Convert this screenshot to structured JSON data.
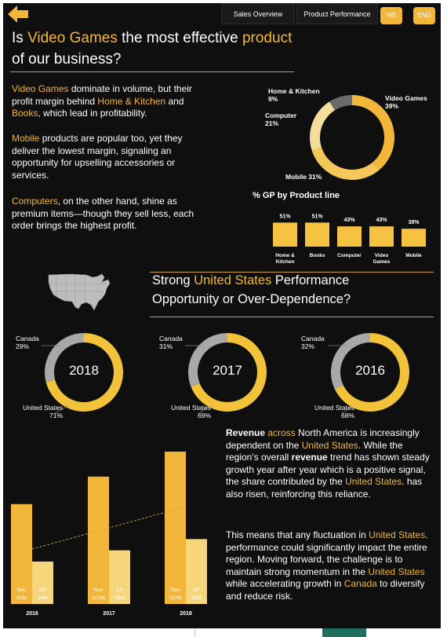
{
  "nav": {
    "tabs": [
      "Sales Overview",
      "Product Performance"
    ],
    "languages": [
      "VIE",
      "ENG"
    ]
  },
  "section1": {
    "title_parts": [
      "Is ",
      "Video Games",
      " the most effective ",
      "product",
      "\nof our business?"
    ],
    "para1_parts": [
      "Video Games",
      " dominate in volume, but their profit margin behind ",
      "Home & Kitchen",
      " and ",
      "Books",
      ", which lead in profitability."
    ],
    "para2_parts": [
      "Mobile",
      " products are popular too, yet they deliver the lowest margin, signaling an opportunity for upselling accessories or services."
    ],
    "para3_parts": [
      "Computers",
      ", on the other hand, shine as premium items—though they sell less, each order brings the highest profit."
    ]
  },
  "section2": {
    "title_parts": [
      "Strong ",
      "United States",
      " Performance\nOpportunity or Over-Dependence?"
    ]
  },
  "section3": {
    "para1_parts": [
      "Revenue",
      " across ",
      "North America",
      " is increasingly dependent on the ",
      "United States",
      ". While the region's overall ",
      "revenue",
      " trend has shown steady growth year after year which is a positive signal, the share contributed by the ",
      "United States",
      ". has also risen, reinforcing this reliance."
    ],
    "para2_parts": [
      "This means that any fluctuation in ",
      "United States",
      ". performance could significantly impact the entire region. Moving forward, the challenge is to maintain strong momentum in the ",
      "United States",
      " while accelerating growth in ",
      "Canada",
      " to diversify and reduce risk."
    ]
  },
  "chart_data": [
    {
      "type": "pie",
      "title": "",
      "categories": [
        "Video Games",
        "Mobile",
        "Computer",
        "Home & Kitchen"
      ],
      "values": [
        39,
        31,
        21,
        9
      ],
      "labels": [
        "Video Games\n39%",
        "Mobile 31%",
        "Computer\n21%",
        "Home & Kitchen\n9%"
      ],
      "colors": [
        "#f2b63b",
        "#f5c85a",
        "#f7dd9a",
        "#6b6b6b"
      ]
    },
    {
      "type": "bar",
      "title": "% GP by Product line",
      "categories": [
        "Home & Kitchen",
        "Books",
        "Computer",
        "Video Games",
        "Mobile"
      ],
      "tick_labels": [
        "Home &\nKitchen",
        "Books",
        "Computer",
        "Video\nGames",
        "Mobile"
      ],
      "values": [
        51,
        51,
        43,
        43,
        38
      ],
      "value_labels": [
        "51%",
        "51%",
        "43%",
        "43%",
        "38%"
      ],
      "color": "#f5c242"
    },
    {
      "type": "pie",
      "title": "2018",
      "categories": [
        "United States",
        "Canada"
      ],
      "values": [
        71,
        29
      ],
      "labels": [
        "United States\n71%",
        "Canada\n29%"
      ],
      "colors": [
        "#f2c23b",
        "#a8a8a8"
      ]
    },
    {
      "type": "pie",
      "title": "2017",
      "categories": [
        "United States",
        "Canada"
      ],
      "values": [
        69,
        31
      ],
      "labels": [
        "United States\n69%",
        "Canada\n31%"
      ],
      "colors": [
        "#f2c23b",
        "#a8a8a8"
      ]
    },
    {
      "type": "pie",
      "title": "2016",
      "categories": [
        "United States",
        "Canada"
      ],
      "values": [
        68,
        32
      ],
      "labels": [
        "United States\n68%",
        "Canada\n32%"
      ],
      "colors": [
        "#f2c23b",
        "#a8a8a8"
      ]
    },
    {
      "type": "bar",
      "categories": [
        "2016",
        "2017",
        "2018"
      ],
      "series": [
        {
          "name": "Rev",
          "values": [
            80,
            102,
            122
          ],
          "value_labels": [
            "80M",
            "102M",
            "122M"
          ],
          "color": "#f2b63b"
        },
        {
          "name": "GP",
          "values": [
            34,
            43,
            52
          ],
          "value_labels": [
            "34M",
            "43M",
            "52M"
          ],
          "color": "#f7d57a"
        }
      ],
      "ylim": [
        0,
        130
      ],
      "trendline": true
    }
  ]
}
